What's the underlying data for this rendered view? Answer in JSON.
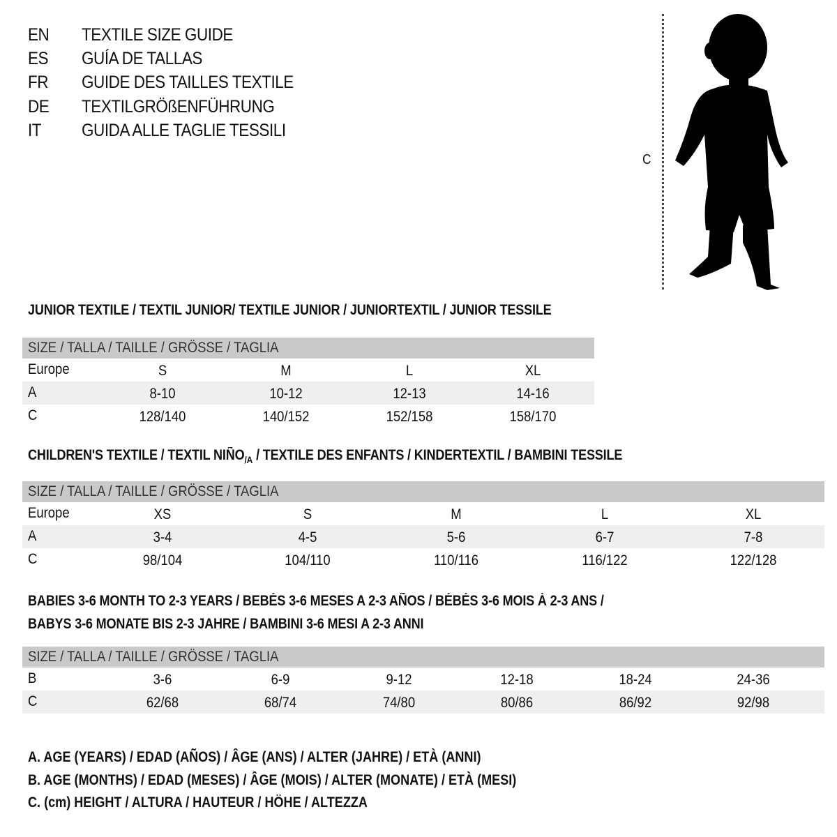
{
  "languages": [
    {
      "code": "EN",
      "text": "TEXTILE SIZE GUIDE"
    },
    {
      "code": "ES",
      "text": "GUÍA DE TALLAS"
    },
    {
      "code": "FR",
      "text": "GUIDE DES TAILLES TEXTILE"
    },
    {
      "code": "DE",
      "text": "TEXTILGRÖßENFÜHRUNG"
    },
    {
      "code": "IT",
      "text": "GUIDA ALLE TAGLIE TESSILI"
    }
  ],
  "figure": {
    "height_label": "C",
    "icon": "child-silhouette-icon"
  },
  "tables": [
    {
      "title_parts": [
        "JUNIOR TEXTILE / TEXTIL JUNIOR/ TEXTILE JUNIOR / JUNIORTEXTIL / JUNIOR TESSILE"
      ],
      "header": "SIZE / TALLA / TAILLE / GRÖSSE / TAGLIA",
      "rows": [
        {
          "label": "Europe",
          "cells": [
            "S",
            "M",
            "L",
            "XL"
          ]
        },
        {
          "label": "A",
          "cells": [
            "8-10",
            "10-12",
            "12-13",
            "14-16"
          ]
        },
        {
          "label": "C",
          "cells": [
            "128/140",
            "140/152",
            "152/158",
            "158/170"
          ]
        }
      ]
    },
    {
      "title_parts": [
        "CHILDREN'S TEXTILE / TEXTIL NIÑO",
        "/A",
        " / TEXTILE DES ENFANTS / KINDERTEXTIL / BAMBINI TESSILE"
      ],
      "header": "SIZE / TALLA / TAILLE / GRÖSSE / TAGLIA",
      "rows": [
        {
          "label": "Europe",
          "cells": [
            "XS",
            "S",
            "M",
            "L",
            "XL"
          ]
        },
        {
          "label": "A",
          "cells": [
            "3-4",
            "4-5",
            "5-6",
            "6-7",
            "7-8"
          ]
        },
        {
          "label": "C",
          "cells": [
            "98/104",
            "104/110",
            "110/116",
            "116/122",
            "122/128"
          ]
        }
      ]
    },
    {
      "title_parts": [
        "BABIES 3-6 MONTH TO 2-3 YEARS / BEBÉS 3-6 MESES A 2-3 AÑOS / BÉBÉS 3-6 MOIS À 2-3 ANS /",
        "BABYS 3-6 MONATE BIS 2-3 JAHRE / BAMBINI 3-6 MESI A 2-3 ANNI"
      ],
      "header": "SIZE / TALLA / TAILLE / GRÖSSE / TAGLIA",
      "rows": [
        {
          "label": "B",
          "cells": [
            "3-6",
            "6-9",
            "9-12",
            "12-18",
            "18-24",
            "24-36"
          ]
        },
        {
          "label": "C",
          "cells": [
            "62/68",
            "68/74",
            "74/80",
            "80/86",
            "86/92",
            "92/98"
          ]
        }
      ]
    }
  ],
  "legend": [
    "A. AGE (YEARS) / EDAD (AÑOS) / ÂGE (ANS) / ALTER (JAHRE) / ETÀ (ANNI)",
    "B. AGE (MONTHS) / EDAD (MESES) / ÂGE (MOIS) / ALTER (MONATE) / ETÀ (MESI)",
    "C. (cm) HEIGHT / ALTURA / HAUTEUR / HÖHE / ALTEZZA"
  ]
}
